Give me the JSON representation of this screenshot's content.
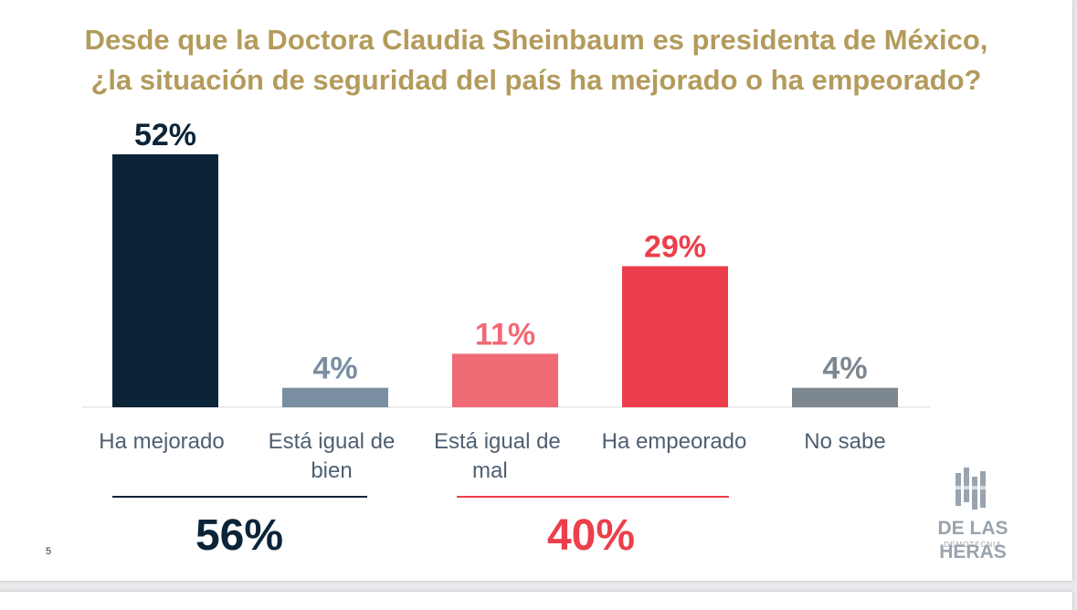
{
  "title": {
    "line1": "Desde que la Doctora Claudia Sheinbaum es presidenta de México,",
    "line2": "¿la situación de seguridad del país ha mejorado o ha empeorado?"
  },
  "chart_data": {
    "type": "bar",
    "title": "Desde que la Doctora Claudia Sheinbaum es presidenta de México, ¿la situación de seguridad del país ha mejorado o ha empeorado?",
    "categories": [
      "Ha mejorado",
      "Está igual de bien",
      "Está igual de mal",
      "Ha empeorado",
      "No sabe"
    ],
    "values": [
      52,
      4,
      11,
      29,
      4
    ],
    "value_labels": [
      "52%",
      "4%",
      "11%",
      "29%",
      "4%"
    ],
    "bar_colors": [
      "#0c2438",
      "#7a8ea2",
      "#ef6a74",
      "#ec3f4b",
      "#7d8790"
    ],
    "label_colors": [
      "#0c2438",
      "#7a8ea2",
      "#ef6a74",
      "#ec3f4b",
      "#7d8790"
    ],
    "ylim": [
      0,
      52
    ],
    "grid": false,
    "xlabel": "",
    "ylabel": "",
    "groups": [
      {
        "total": "56%",
        "color": "#0c2438"
      },
      {
        "total": "40%",
        "color": "#ec3f4b"
      }
    ]
  },
  "labels": {
    "cat0": "Ha mejorado",
    "cat1_line1": "Está igual de",
    "cat1_line2": "bien",
    "cat2_line1": "Está igual de",
    "cat2_line2": "mal",
    "cat3": "Ha empeorado",
    "cat4": "No sabe"
  },
  "page_number": "5",
  "logo": {
    "icon": "building-bars-icon",
    "name": "DE LAS HERAS",
    "sub": "DEMOTECNIA",
    "color": "#9aa4ae"
  }
}
